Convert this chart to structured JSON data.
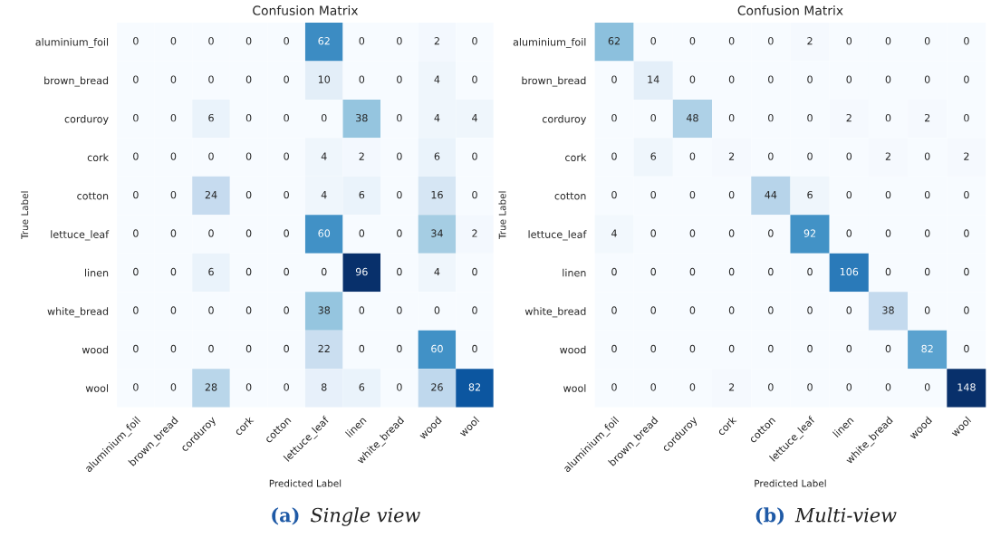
{
  "chart_data": [
    {
      "type": "heatmap",
      "title": "Confusion Matrix",
      "xlabel": "Predicted Label",
      "ylabel": "True Label",
      "annotations": [
        "(a) Single view"
      ],
      "categories": [
        "aluminium_foil",
        "brown_bread",
        "corduroy",
        "cork",
        "cotton",
        "lettuce_leaf",
        "linen",
        "white_bread",
        "wood",
        "wool"
      ],
      "y_categories": [
        "aluminium_foil",
        "brown_bread",
        "corduroy",
        "cork",
        "cotton",
        "lettuce_leaf",
        "linen",
        "white_bread",
        "wood",
        "wool"
      ],
      "cells": [
        [
          0,
          0,
          0,
          0,
          0,
          62,
          0,
          0,
          2,
          0
        ],
        [
          0,
          0,
          0,
          0,
          0,
          10,
          0,
          0,
          4,
          0
        ],
        [
          0,
          0,
          6,
          0,
          0,
          0,
          38,
          0,
          4,
          4
        ],
        [
          0,
          0,
          0,
          0,
          0,
          4,
          2,
          0,
          6,
          0
        ],
        [
          0,
          0,
          24,
          0,
          0,
          4,
          6,
          0,
          16,
          0
        ],
        [
          0,
          0,
          0,
          0,
          0,
          60,
          0,
          0,
          34,
          2
        ],
        [
          0,
          0,
          6,
          0,
          0,
          0,
          96,
          0,
          4,
          0
        ],
        [
          0,
          0,
          0,
          0,
          0,
          38,
          0,
          0,
          0,
          0
        ],
        [
          0,
          0,
          0,
          0,
          0,
          22,
          0,
          0,
          60,
          0
        ],
        [
          0,
          0,
          28,
          0,
          0,
          8,
          6,
          0,
          26,
          82
        ]
      ],
      "data_labels": true
    },
    {
      "type": "heatmap",
      "title": "Confusion Matrix",
      "xlabel": "Predicted Label",
      "ylabel": "True Label",
      "annotations": [
        "(b) Multi-view"
      ],
      "categories": [
        "aluminium_foil",
        "brown_bread",
        "corduroy",
        "cork",
        "cotton",
        "lettuce_leaf",
        "linen",
        "white_bread",
        "wood",
        "wool"
      ],
      "y_categories": [
        "aluminium_foil",
        "brown_bread",
        "corduroy",
        "cork",
        "cotton",
        "lettuce_leaf",
        "linen",
        "white_bread",
        "wood",
        "wool"
      ],
      "cells": [
        [
          62,
          0,
          0,
          0,
          0,
          2,
          0,
          0,
          0,
          0
        ],
        [
          0,
          14,
          0,
          0,
          0,
          0,
          0,
          0,
          0,
          0
        ],
        [
          0,
          0,
          48,
          0,
          0,
          0,
          2,
          0,
          2,
          0
        ],
        [
          0,
          6,
          0,
          2,
          0,
          0,
          0,
          2,
          0,
          2
        ],
        [
          0,
          0,
          0,
          0,
          44,
          6,
          0,
          0,
          0,
          0
        ],
        [
          4,
          0,
          0,
          0,
          0,
          92,
          0,
          0,
          0,
          0
        ],
        [
          0,
          0,
          0,
          0,
          0,
          0,
          106,
          0,
          0,
          0
        ],
        [
          0,
          0,
          0,
          0,
          0,
          0,
          0,
          38,
          0,
          0
        ],
        [
          0,
          0,
          0,
          0,
          0,
          0,
          0,
          0,
          82,
          0
        ],
        [
          0,
          0,
          0,
          2,
          0,
          0,
          0,
          0,
          0,
          148
        ]
      ],
      "data_labels": true
    }
  ]
}
